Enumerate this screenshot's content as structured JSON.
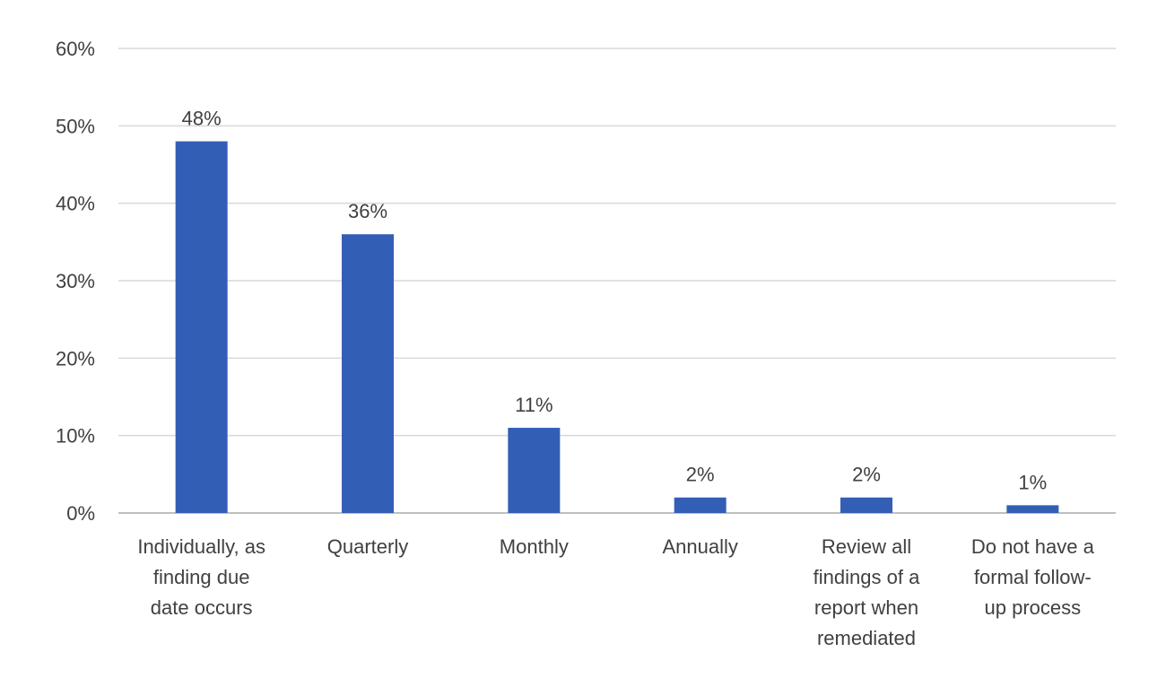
{
  "chart_data": {
    "type": "bar",
    "categories": [
      [
        "Individually, as",
        "finding due",
        "date occurs"
      ],
      [
        "Quarterly"
      ],
      [
        "Monthly"
      ],
      [
        "Annually"
      ],
      [
        "Review all",
        "findings of a",
        "report when",
        "remediated"
      ],
      [
        "Do not have a",
        "formal follow-",
        "up process"
      ]
    ],
    "values": [
      48,
      36,
      11,
      2,
      2,
      1
    ],
    "data_labels": [
      "48%",
      "36%",
      "11%",
      "2%",
      "2%",
      "1%"
    ],
    "y_ticks": [
      0,
      10,
      20,
      30,
      40,
      50,
      60
    ],
    "y_tick_labels": [
      "0%",
      "10%",
      "20%",
      "30%",
      "40%",
      "50%",
      "60%"
    ],
    "ylim": [
      0,
      60
    ],
    "grid": true,
    "legend": "none",
    "bar_color": "#335EB6",
    "grid_color": "#D9D9D9",
    "axis_color": "#BFBFBF",
    "text_color": "#404040"
  }
}
